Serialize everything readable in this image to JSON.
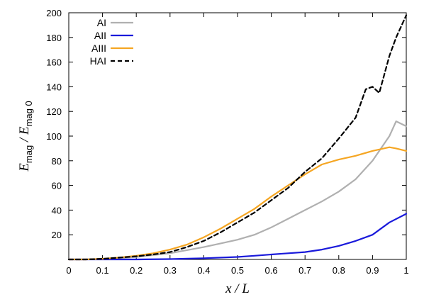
{
  "chart_data": {
    "type": "line",
    "xlabel": "x / L",
    "ylabel": {
      "parts": [
        {
          "text": "E",
          "style": "italic"
        },
        {
          "text": "mag",
          "style": "sub"
        },
        {
          "text": " / ",
          "style": "italic"
        },
        {
          "text": "E",
          "style": "italic"
        },
        {
          "text": "mag 0",
          "style": "sub"
        }
      ]
    },
    "xlim": [
      0,
      1
    ],
    "ylim": [
      0,
      200
    ],
    "xticks": [
      "0",
      "0.1",
      "0.2",
      "0.3",
      "0.4",
      "0.5",
      "0.6",
      "0.7",
      "0.8",
      "0.9",
      "1"
    ],
    "yticks": [
      "20",
      "40",
      "60",
      "80",
      "100",
      "120",
      "140",
      "160",
      "180",
      "200"
    ],
    "grid": false,
    "legend_position": "top-left",
    "series": [
      {
        "name": "AI",
        "color": "#b0b0b0",
        "dash": "solid",
        "x": [
          0,
          0.05,
          0.1,
          0.15,
          0.2,
          0.25,
          0.3,
          0.35,
          0.4,
          0.45,
          0.5,
          0.55,
          0.6,
          0.65,
          0.7,
          0.75,
          0.8,
          0.85,
          0.9,
          0.95,
          0.97,
          1.0
        ],
        "y": [
          0,
          0,
          0.5,
          1,
          2,
          3.5,
          5,
          7.5,
          10,
          13,
          16,
          20,
          26,
          33,
          40,
          47,
          55,
          65,
          80,
          100,
          112,
          108
        ]
      },
      {
        "name": "AII",
        "color": "#1a1adb",
        "dash": "solid",
        "x": [
          0,
          0.1,
          0.2,
          0.3,
          0.4,
          0.5,
          0.55,
          0.6,
          0.65,
          0.7,
          0.75,
          0.8,
          0.85,
          0.9,
          0.95,
          1.0
        ],
        "y": [
          0,
          0,
          0,
          0.3,
          1,
          2,
          3,
          4,
          5,
          6,
          8,
          11,
          15,
          20,
          30,
          37
        ]
      },
      {
        "name": "AIII",
        "color": "#f5a623",
        "dash": "solid",
        "x": [
          0,
          0.05,
          0.1,
          0.15,
          0.2,
          0.25,
          0.3,
          0.35,
          0.4,
          0.45,
          0.5,
          0.55,
          0.6,
          0.65,
          0.7,
          0.75,
          0.8,
          0.85,
          0.9,
          0.95,
          0.97,
          1.0
        ],
        "y": [
          0,
          0,
          0.5,
          1.5,
          3,
          5,
          8,
          12,
          18,
          25,
          33,
          41,
          51,
          60,
          69,
          77,
          81,
          84,
          88,
          91,
          90,
          88
        ]
      },
      {
        "name": "HAI",
        "color": "#000000",
        "dash": "dashed",
        "x": [
          0,
          0.05,
          0.1,
          0.15,
          0.2,
          0.25,
          0.3,
          0.35,
          0.4,
          0.45,
          0.5,
          0.55,
          0.6,
          0.65,
          0.7,
          0.75,
          0.8,
          0.85,
          0.88,
          0.9,
          0.92,
          0.95,
          0.97,
          1.0
        ],
        "y": [
          0,
          0,
          0.5,
          1.5,
          2.5,
          4,
          6,
          10,
          15,
          22,
          30,
          38,
          48,
          58,
          71,
          82,
          98,
          115,
          138,
          140,
          135,
          165,
          180,
          198
        ]
      }
    ]
  }
}
